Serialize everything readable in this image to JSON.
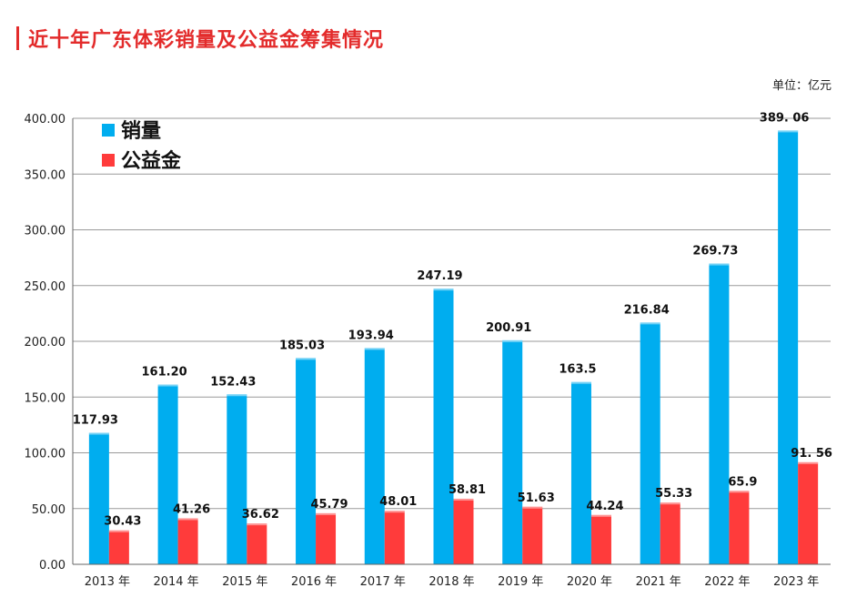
{
  "page_title": "近十年广东体彩销量及公益金筹集情况",
  "unit_label": "单位：亿元",
  "colors": {
    "sales": "#00ADEF",
    "welfare": "#FF3B3B",
    "title": "#E32B2B"
  },
  "chart_data": {
    "type": "bar",
    "title": "近十年广东体彩销量及公益金筹集情况",
    "xlabel": "",
    "ylabel": "",
    "ylim": [
      0,
      400
    ],
    "yticks": [
      "0.00",
      "50.00",
      "100.00",
      "150.00",
      "200.00",
      "250.00",
      "300.00",
      "350.00",
      "400.00"
    ],
    "grid": true,
    "legend_position": "top-left",
    "categories": [
      "2013 年",
      "2014 年",
      "2015 年",
      "2016 年",
      "2017 年",
      "2018 年",
      "2019 年",
      "2020 年",
      "2021 年",
      "2022 年",
      "2023 年"
    ],
    "series": [
      {
        "name": "销量",
        "values": [
          117.93,
          161.2,
          152.43,
          185.03,
          193.94,
          247.19,
          200.91,
          163.5,
          216.84,
          269.73,
          389.06
        ],
        "labels": [
          "117.93",
          "161.20",
          "152.43",
          "185.03",
          "193.94",
          "247.19",
          "200.91",
          "163.5",
          "216.84",
          "269.73",
          "389. 06"
        ]
      },
      {
        "name": "公益金",
        "values": [
          30.43,
          41.26,
          36.62,
          45.79,
          48.01,
          58.81,
          51.63,
          44.24,
          55.33,
          65.9,
          91.56
        ],
        "labels": [
          "30.43",
          "41.26",
          "36.62",
          "45.79",
          "48.01",
          "58.81",
          "51.63",
          "44.24",
          "55.33",
          "65.9",
          "91. 56"
        ]
      }
    ]
  }
}
